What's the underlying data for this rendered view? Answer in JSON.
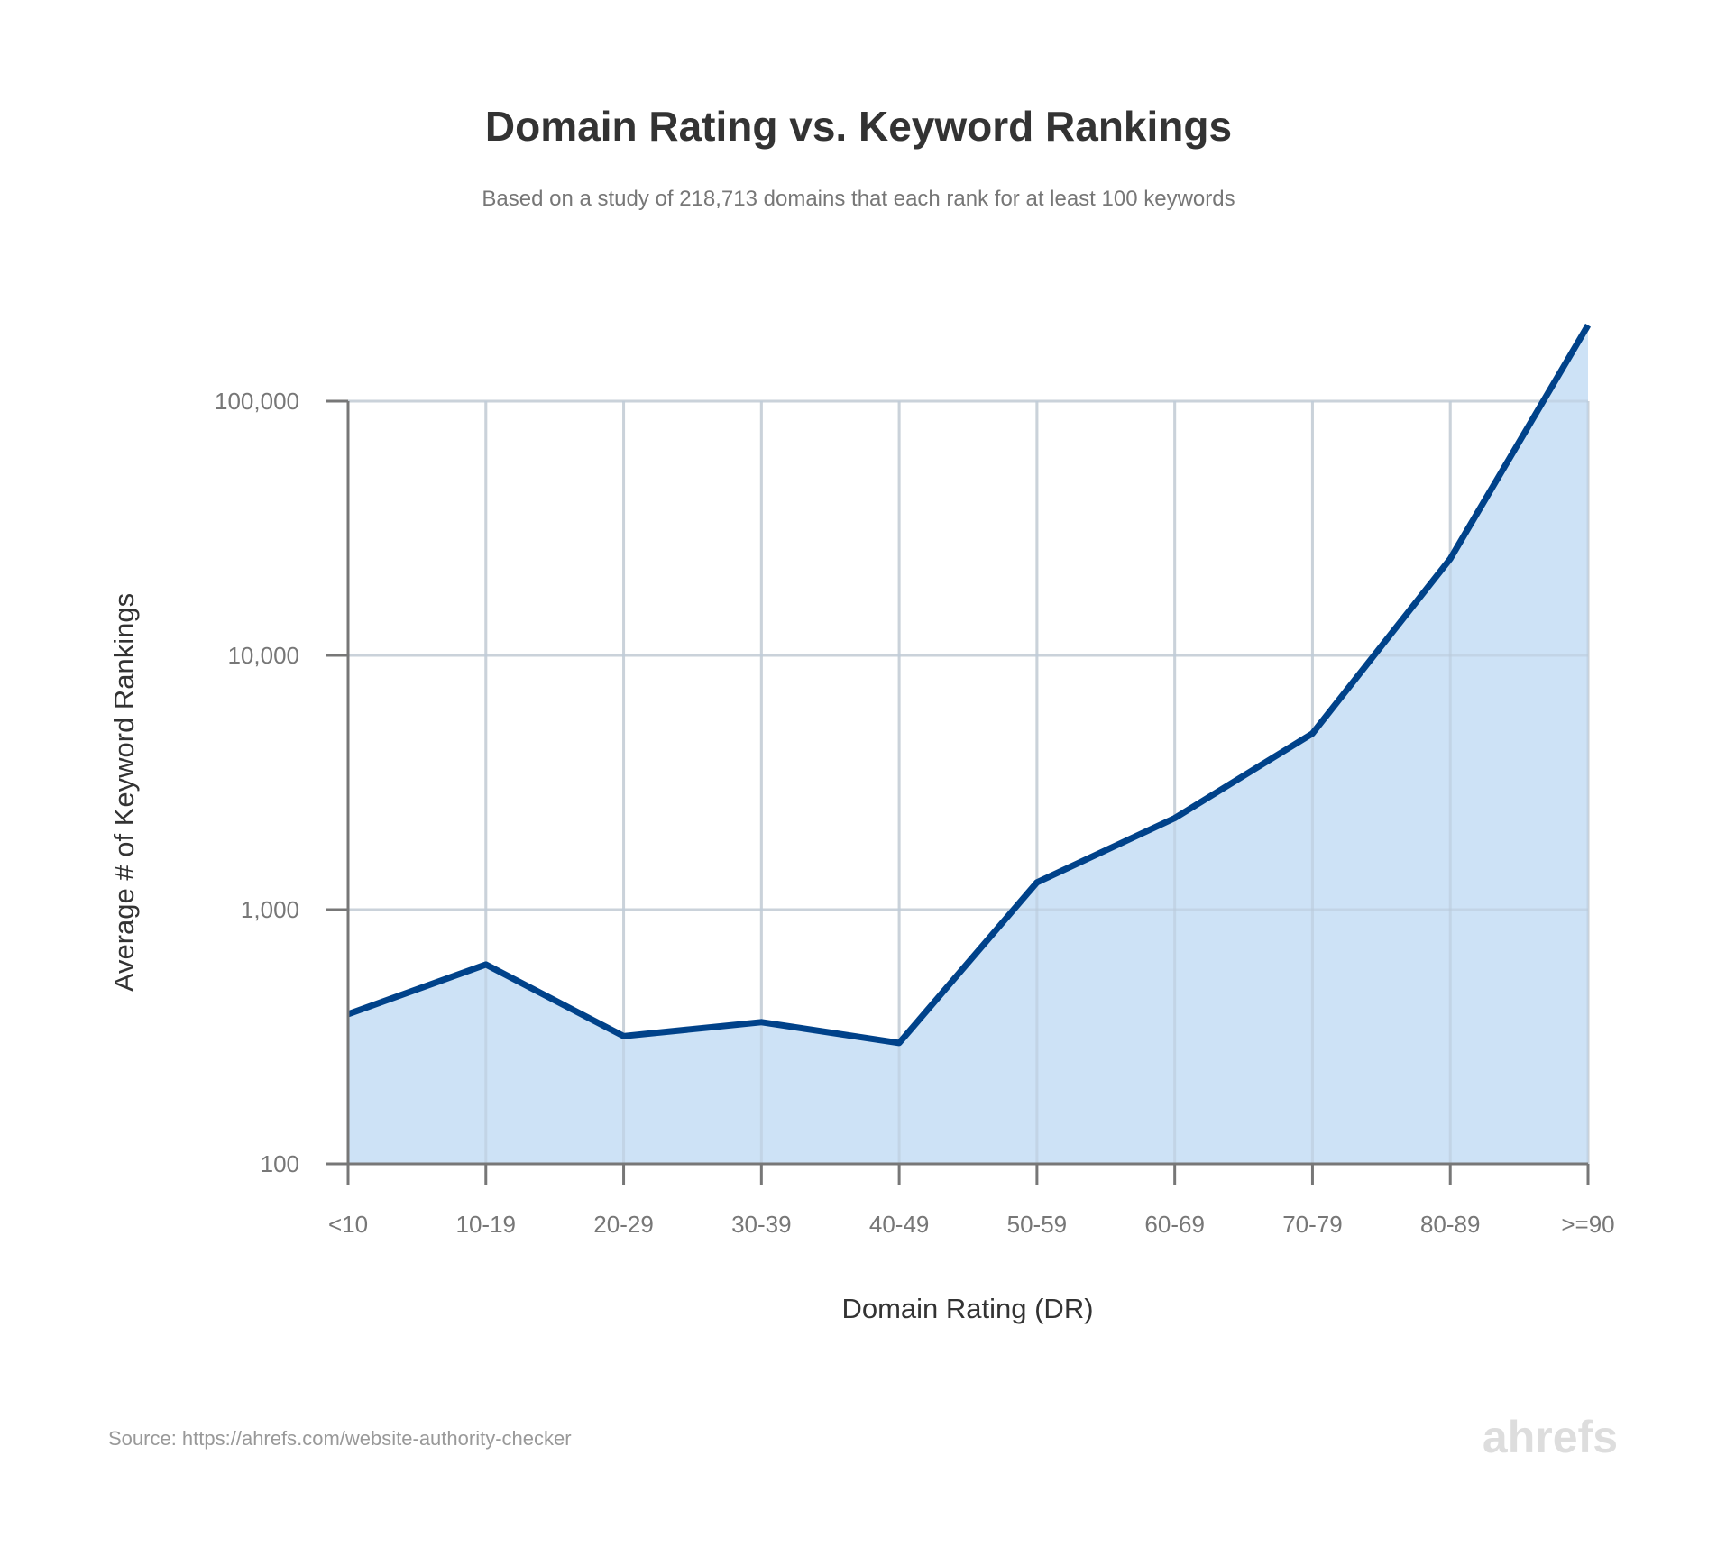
{
  "chart_data": {
    "type": "area",
    "title": "Domain Rating vs. Keyword Rankings",
    "subtitle": "Based on a study of 218,713 domains that each rank for at least 100 keywords",
    "xlabel": "Domain Rating (DR)",
    "ylabel": "Average # of Keyword Rankings",
    "yscale": "log",
    "ylim": [
      100,
      100000
    ],
    "yticks": [
      100,
      1000,
      10000,
      100000
    ],
    "ytick_labels": [
      "100",
      "1,000",
      "10,000",
      "100,000"
    ],
    "grid": true,
    "categories": [
      "<10",
      "10-19",
      "20-29",
      "30-39",
      "40-49",
      "50-59",
      "60-69",
      "70-79",
      "80-89",
      ">=90"
    ],
    "values": [
      388,
      608,
      318,
      361,
      299,
      1280,
      2290,
      4930,
      24000,
      199000
    ],
    "colors": {
      "line": "#00428a",
      "fill": "#cae0f5",
      "grid": "#dddddd",
      "axis": "#777777"
    }
  },
  "footer": {
    "source": "Source: https://ahrefs.com/website-authority-checker",
    "logo": "ahrefs"
  }
}
